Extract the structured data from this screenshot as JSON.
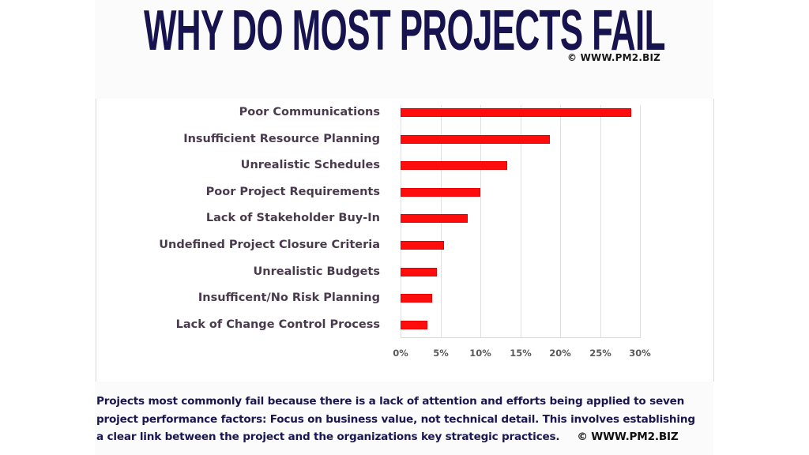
{
  "header": {
    "title": "WHY DO MOST PROJECTS FAIL",
    "copyright": "© WWW.PM2.BIZ"
  },
  "footer": {
    "lines": [
      "Projects most commonly fail because there is a lack of attention and efforts being applied to seven",
      "project performance factors: Focus on business value, not technical detail. This involves establishing",
      "a clear link between the project and the organizations key strategic practices."
    ],
    "copyright": "© WWW.PM2.BIZ"
  },
  "colors": {
    "title": "#16134f",
    "bar": "#ff0d0d",
    "label": "#4a3a4e",
    "footer": "#1a1750"
  },
  "chart_data": {
    "type": "bar",
    "orientation": "horizontal",
    "title": "WHY DO MOST PROJECTS FAIL",
    "xlabel": "",
    "ylabel": "",
    "categories": [
      "Poor Communications",
      "Insufficient Resource Planning",
      "Unrealistic Schedules",
      "Poor Project Requirements",
      "Lack of Stakeholder Buy-In",
      "Undefined Project Closure Criteria",
      "Unrealistic Budgets",
      "Insufficent/No Risk Planning",
      "Lack of Change Control Process"
    ],
    "values": [
      28.9,
      18.7,
      13.4,
      10.0,
      8.4,
      5.4,
      4.6,
      4.0,
      3.4
    ],
    "unit": "%",
    "xlim": [
      0,
      30
    ],
    "x_ticks": [
      "0%",
      "5%",
      "10%",
      "15%",
      "20%",
      "25%",
      "30%"
    ],
    "grid": "vertical",
    "legend": null
  }
}
